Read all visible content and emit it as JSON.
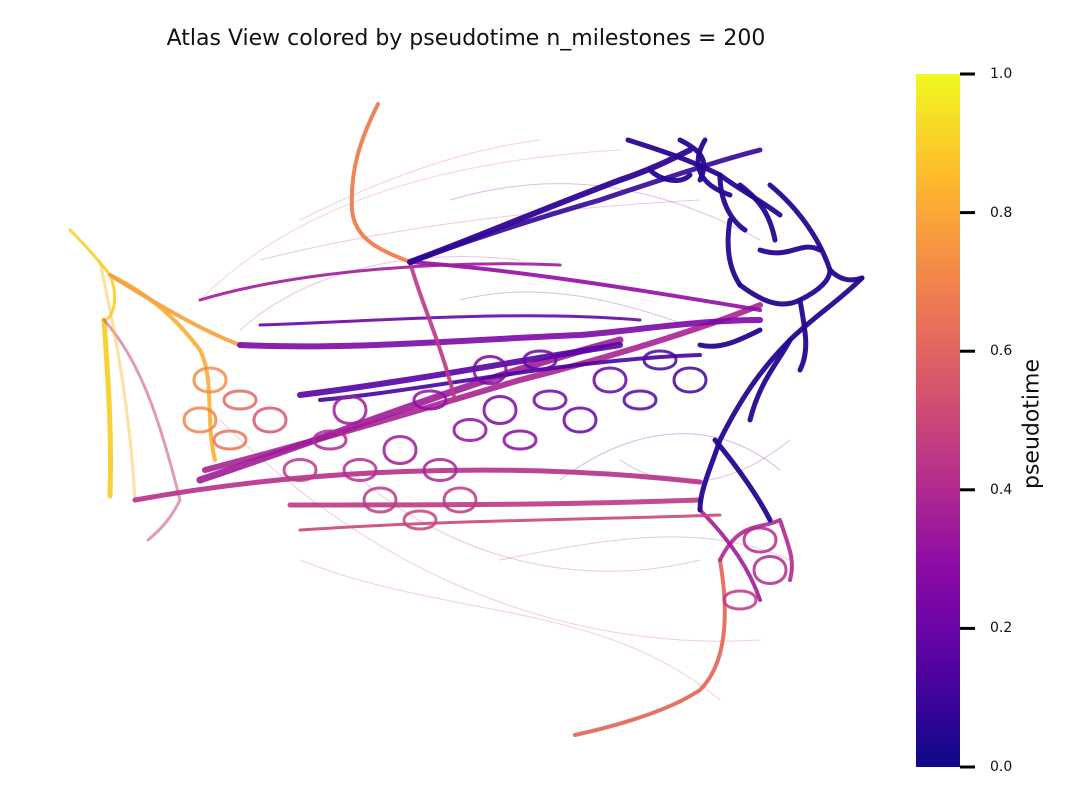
{
  "chart_data": {
    "type": "network graph (atlas view)",
    "title": "Atlas View colored by pseudotime n_milestones = 200",
    "colorbar": {
      "label": "pseudotime",
      "colormap": "plasma",
      "range": [
        0.0,
        1.0
      ],
      "ticks": [
        "0.0",
        "0.2",
        "0.4",
        "0.6",
        "0.8",
        "1.0"
      ],
      "stops": [
        "#0d0887",
        "#5302a3",
        "#8b0aa5",
        "#b83289",
        "#db5c68",
        "#f48849",
        "#febd2a",
        "#f0f921"
      ]
    },
    "structure": {
      "root_region_pseudotime": 0.0,
      "terminal_branches": [
        {
          "direction": "top arm",
          "pseudotime": 0.65
        },
        {
          "direction": "left end",
          "pseudotime": 0.85
        },
        {
          "direction": "bottom arm",
          "pseudotime": 0.6
        }
      ]
    },
    "axes": "hidden"
  }
}
